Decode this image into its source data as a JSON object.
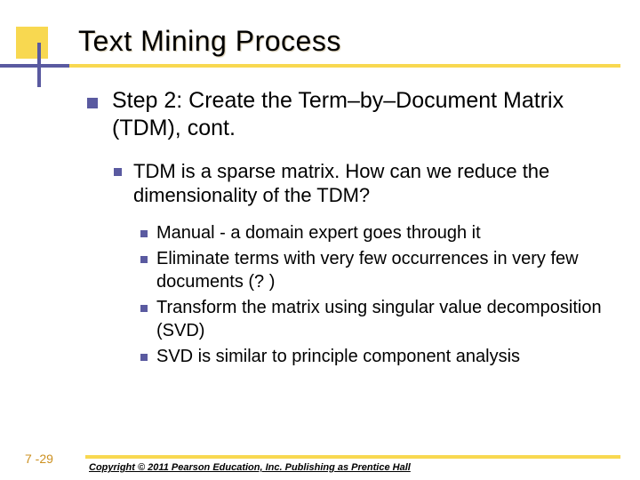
{
  "title": "Text Mining Process",
  "level1": "Step 2: Create the Term–by–Document Matrix (TDM), cont.",
  "level2": "TDM is a sparse matrix. How can we reduce the dimensionality of the TDM?",
  "level3": [
    "Manual - a domain expert goes through it",
    "Eliminate terms with very few occurrences in very few documents (? )",
    "Transform the matrix using singular value decomposition (SVD)",
    "SVD is similar to principle component analysis"
  ],
  "pageNum": "7 -29",
  "copyright": "Copyright © 2011 Pearson Education, Inc. Publishing as Prentice Hall",
  "colors": {
    "accentYellow": "#f8d850",
    "accentPurple": "#5a5aa0",
    "pageNumColor": "#cc9020"
  }
}
